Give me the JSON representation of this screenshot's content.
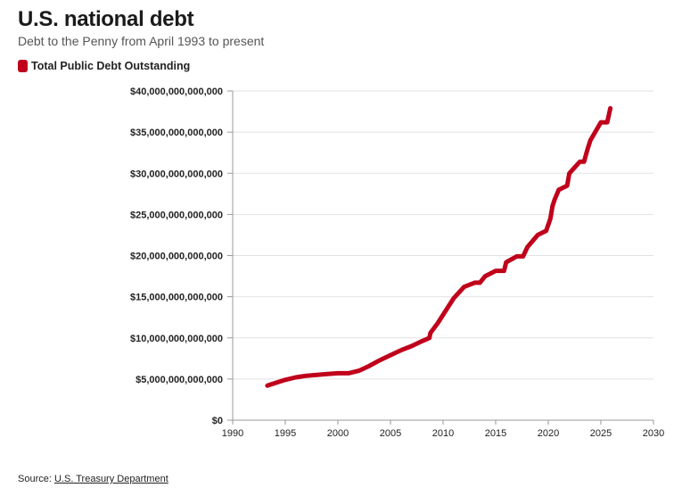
{
  "header": {
    "title": "U.S. national debt",
    "subtitle": "Debt to the Penny from April 1993 to present"
  },
  "legend": {
    "label": "Total Public Debt Outstanding",
    "color": "#c0001b"
  },
  "source": {
    "prefix": "Source:",
    "link_label": "U.S. Treasury Department"
  },
  "chart_data": {
    "type": "line",
    "title": "U.S. national debt",
    "subtitle": "Debt to the Penny from April 1993 to present",
    "xlabel": "",
    "ylabel": "",
    "xlim": [
      1990,
      2030
    ],
    "ylim": [
      0,
      40000000000000
    ],
    "grid": true,
    "legend_position": "top-left",
    "x_ticks": [
      "1990",
      "1995",
      "2000",
      "2005",
      "2010",
      "2015",
      "2020",
      "2025",
      "2030"
    ],
    "y_ticks": [
      "$0",
      "$5,000,000,000,000",
      "$10,000,000,000,000",
      "$15,000,000,000,000",
      "$20,000,000,000,000",
      "$25,000,000,000,000",
      "$30,000,000,000,000",
      "$35,000,000,000,000",
      "$40,000,000,000,000"
    ],
    "series": [
      {
        "name": "Total Public Debt Outstanding",
        "color": "#c0001b",
        "x": [
          1993.3,
          1994.0,
          1995.0,
          1996.0,
          1997.0,
          1998.0,
          1999.0,
          2000.0,
          2001.0,
          2002.0,
          2003.0,
          2004.0,
          2005.0,
          2006.0,
          2007.0,
          2008.0,
          2008.7,
          2008.8,
          2009.5,
          2010.0,
          2011.0,
          2012.0,
          2013.0,
          2013.5,
          2014.0,
          2015.0,
          2015.8,
          2016.0,
          2017.0,
          2017.6,
          2018.0,
          2019.0,
          2019.8,
          2020.2,
          2020.4,
          2020.6,
          2021.0,
          2021.8,
          2022.0,
          2023.0,
          2023.4,
          2023.7,
          2024.0,
          2025.0,
          2025.6,
          2025.9
        ],
        "y": [
          4200000000000,
          4500000000000,
          4900000000000,
          5200000000000,
          5400000000000,
          5500000000000,
          5600000000000,
          5700000000000,
          5700000000000,
          6000000000000,
          6600000000000,
          7300000000000,
          7900000000000,
          8500000000000,
          9000000000000,
          9600000000000,
          10000000000000,
          10600000000000,
          11800000000000,
          12800000000000,
          14800000000000,
          16200000000000,
          16700000000000,
          16700000000000,
          17500000000000,
          18150000000000,
          18150000000000,
          19200000000000,
          19900000000000,
          19900000000000,
          21000000000000,
          22500000000000,
          23000000000000,
          24500000000000,
          26000000000000,
          26800000000000,
          28000000000000,
          28500000000000,
          30000000000000,
          31400000000000,
          31400000000000,
          32800000000000,
          34000000000000,
          36200000000000,
          36200000000000,
          37900000000000
        ]
      }
    ]
  }
}
